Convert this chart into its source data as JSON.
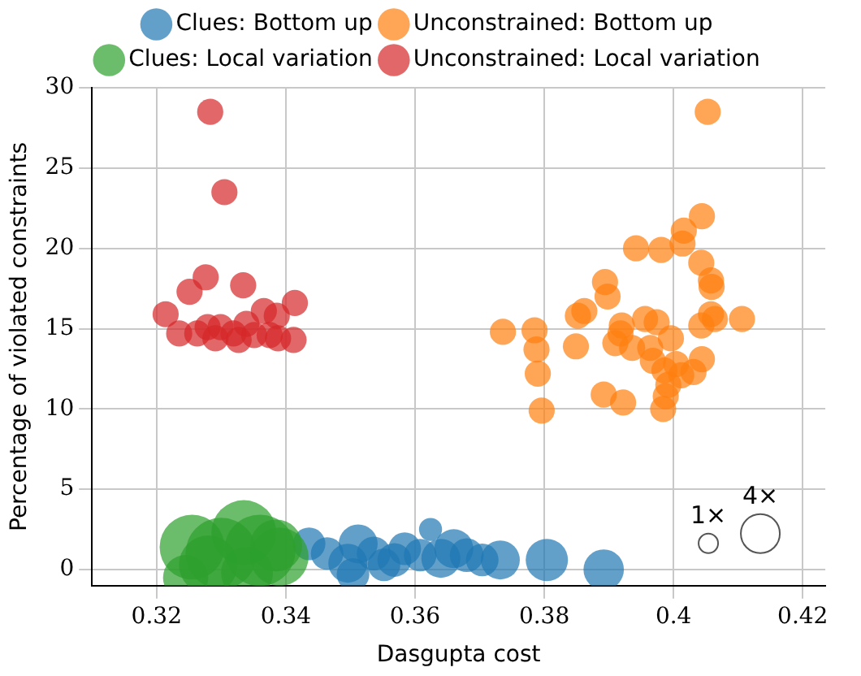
{
  "chart_data": {
    "type": "bubble",
    "xlabel": "Dasgupta cost",
    "ylabel": "Percentage of violated constraints",
    "xlim": [
      0.31,
      0.4235
    ],
    "ylim": [
      -1,
      30
    ],
    "xticks": [
      0.32,
      0.34,
      0.36,
      0.38,
      0.4,
      {
        "value": 0.42,
        "label": "0.42"
      }
    ],
    "yticks": [
      0,
      5,
      10,
      15,
      20,
      25,
      30
    ],
    "grid": true,
    "legend": "top",
    "marker": "circle",
    "size_legend": [
      {
        "value": 1,
        "label": "1×"
      },
      {
        "value": 4,
        "label": "4×"
      }
    ],
    "series": [
      {
        "name": "Clues: Bottom up",
        "color": "#1f77b4",
        "x": [
          0.3892,
          0.3804,
          0.3732,
          0.3704,
          0.366,
          0.3624,
          0.3608,
          0.3584,
          0.3552,
          0.3512,
          0.3496,
          0.3464,
          0.3436,
          0.3504,
          0.364,
          0.368,
          0.3536,
          0.3568
        ],
        "values": [
          0,
          0.6,
          0.6,
          0.6,
          1.3,
          2.5,
          0.9,
          1.3,
          0.3,
          1.6,
          0.4,
          1,
          1.6,
          -0.3,
          0.7,
          0.9,
          1,
          0.6
        ],
        "sizes": [
          4.3,
          4.7,
          4,
          2.8,
          4,
          1.4,
          2.8,
          2.8,
          2.8,
          4,
          4,
          2.8,
          2.8,
          2.8,
          4,
          3,
          3,
          3
        ]
      },
      {
        "name": "Unconstrained: Bottom up",
        "color": "#ff7f0e",
        "x": [
          0.4053,
          0.4044,
          0.4016,
          0.4014,
          0.3942,
          0.3981,
          0.4043,
          0.4058,
          0.4059,
          0.3894,
          0.3898,
          0.3862,
          0.3852,
          0.4058,
          0.4064,
          0.4106,
          0.4043,
          0.3736,
          0.3785,
          0.3788,
          0.379,
          0.3796,
          0.3849,
          0.3892,
          0.3922,
          0.3984,
          0.3988,
          0.392,
          0.3956,
          0.3974,
          0.391,
          0.3936,
          0.3964,
          0.3996,
          0.3968,
          0.4004,
          0.3986,
          0.4012,
          0.4031,
          0.4044,
          0.3992,
          0.3918
        ],
        "values": [
          28.5,
          22,
          21.1,
          20.3,
          20,
          19.9,
          19.1,
          18,
          17.6,
          17.9,
          17,
          16.1,
          15.8,
          15.9,
          15.6,
          15.6,
          15.2,
          14.8,
          14.9,
          13.7,
          12.2,
          9.9,
          13.9,
          10.9,
          10.4,
          10,
          10.8,
          15.2,
          15.6,
          15.4,
          14.1,
          13.8,
          13.8,
          14.4,
          13,
          12.8,
          12.4,
          12.1,
          12.3,
          13.1,
          11.5,
          14.7
        ],
        "sizes": [
          1.8,
          1.8,
          1.8,
          1.8,
          1.8,
          1.8,
          1.8,
          1.8,
          1.8,
          1.8,
          1.8,
          1.8,
          1.8,
          1.8,
          1.8,
          1.8,
          1.8,
          1.8,
          1.8,
          1.8,
          1.8,
          1.8,
          1.8,
          1.8,
          1.8,
          1.8,
          1.8,
          1.8,
          1.8,
          1.8,
          1.8,
          1.8,
          1.8,
          1.8,
          1.8,
          1.8,
          1.8,
          1.8,
          1.8,
          1.8,
          1.8,
          1.8
        ]
      },
      {
        "name": "Clues: Local variation",
        "color": "#2ca02c",
        "x": [
          0.3335,
          0.3255,
          0.3245,
          0.33,
          0.336,
          0.339,
          0.328,
          0.334,
          0.3385
        ],
        "values": [
          2.3,
          1.4,
          -0.5,
          1,
          1.2,
          0.8,
          0.3,
          -0.2,
          1.5
        ],
        "sizes": [
          11.1,
          11.1,
          5.4,
          13.4,
          13.4,
          9,
          9,
          7.1,
          7.1
        ]
      },
      {
        "name": "Unconstrained: Local variation",
        "color": "#d62728",
        "x": [
          0.3283,
          0.3305,
          0.3276,
          0.3251,
          0.3334,
          0.3214,
          0.3414,
          0.3386,
          0.3366,
          0.3235,
          0.3412,
          0.3263,
          0.3279,
          0.3299,
          0.3319,
          0.3339,
          0.3351,
          0.3375,
          0.3388,
          0.3327,
          0.3291
        ],
        "values": [
          28.5,
          23.5,
          18.2,
          17.3,
          17.7,
          15.9,
          16.6,
          15.8,
          16.1,
          14.7,
          14.3,
          14.7,
          15.1,
          15.1,
          14.7,
          15.3,
          14.6,
          14.6,
          14.4,
          14.3,
          14.4
        ],
        "sizes": [
          1.8,
          1.8,
          1.8,
          1.8,
          1.8,
          1.8,
          1.8,
          1.8,
          1.8,
          1.8,
          1.8,
          1.8,
          1.8,
          1.8,
          1.8,
          1.8,
          1.8,
          1.8,
          1.8,
          1.8,
          1.8
        ]
      }
    ]
  }
}
